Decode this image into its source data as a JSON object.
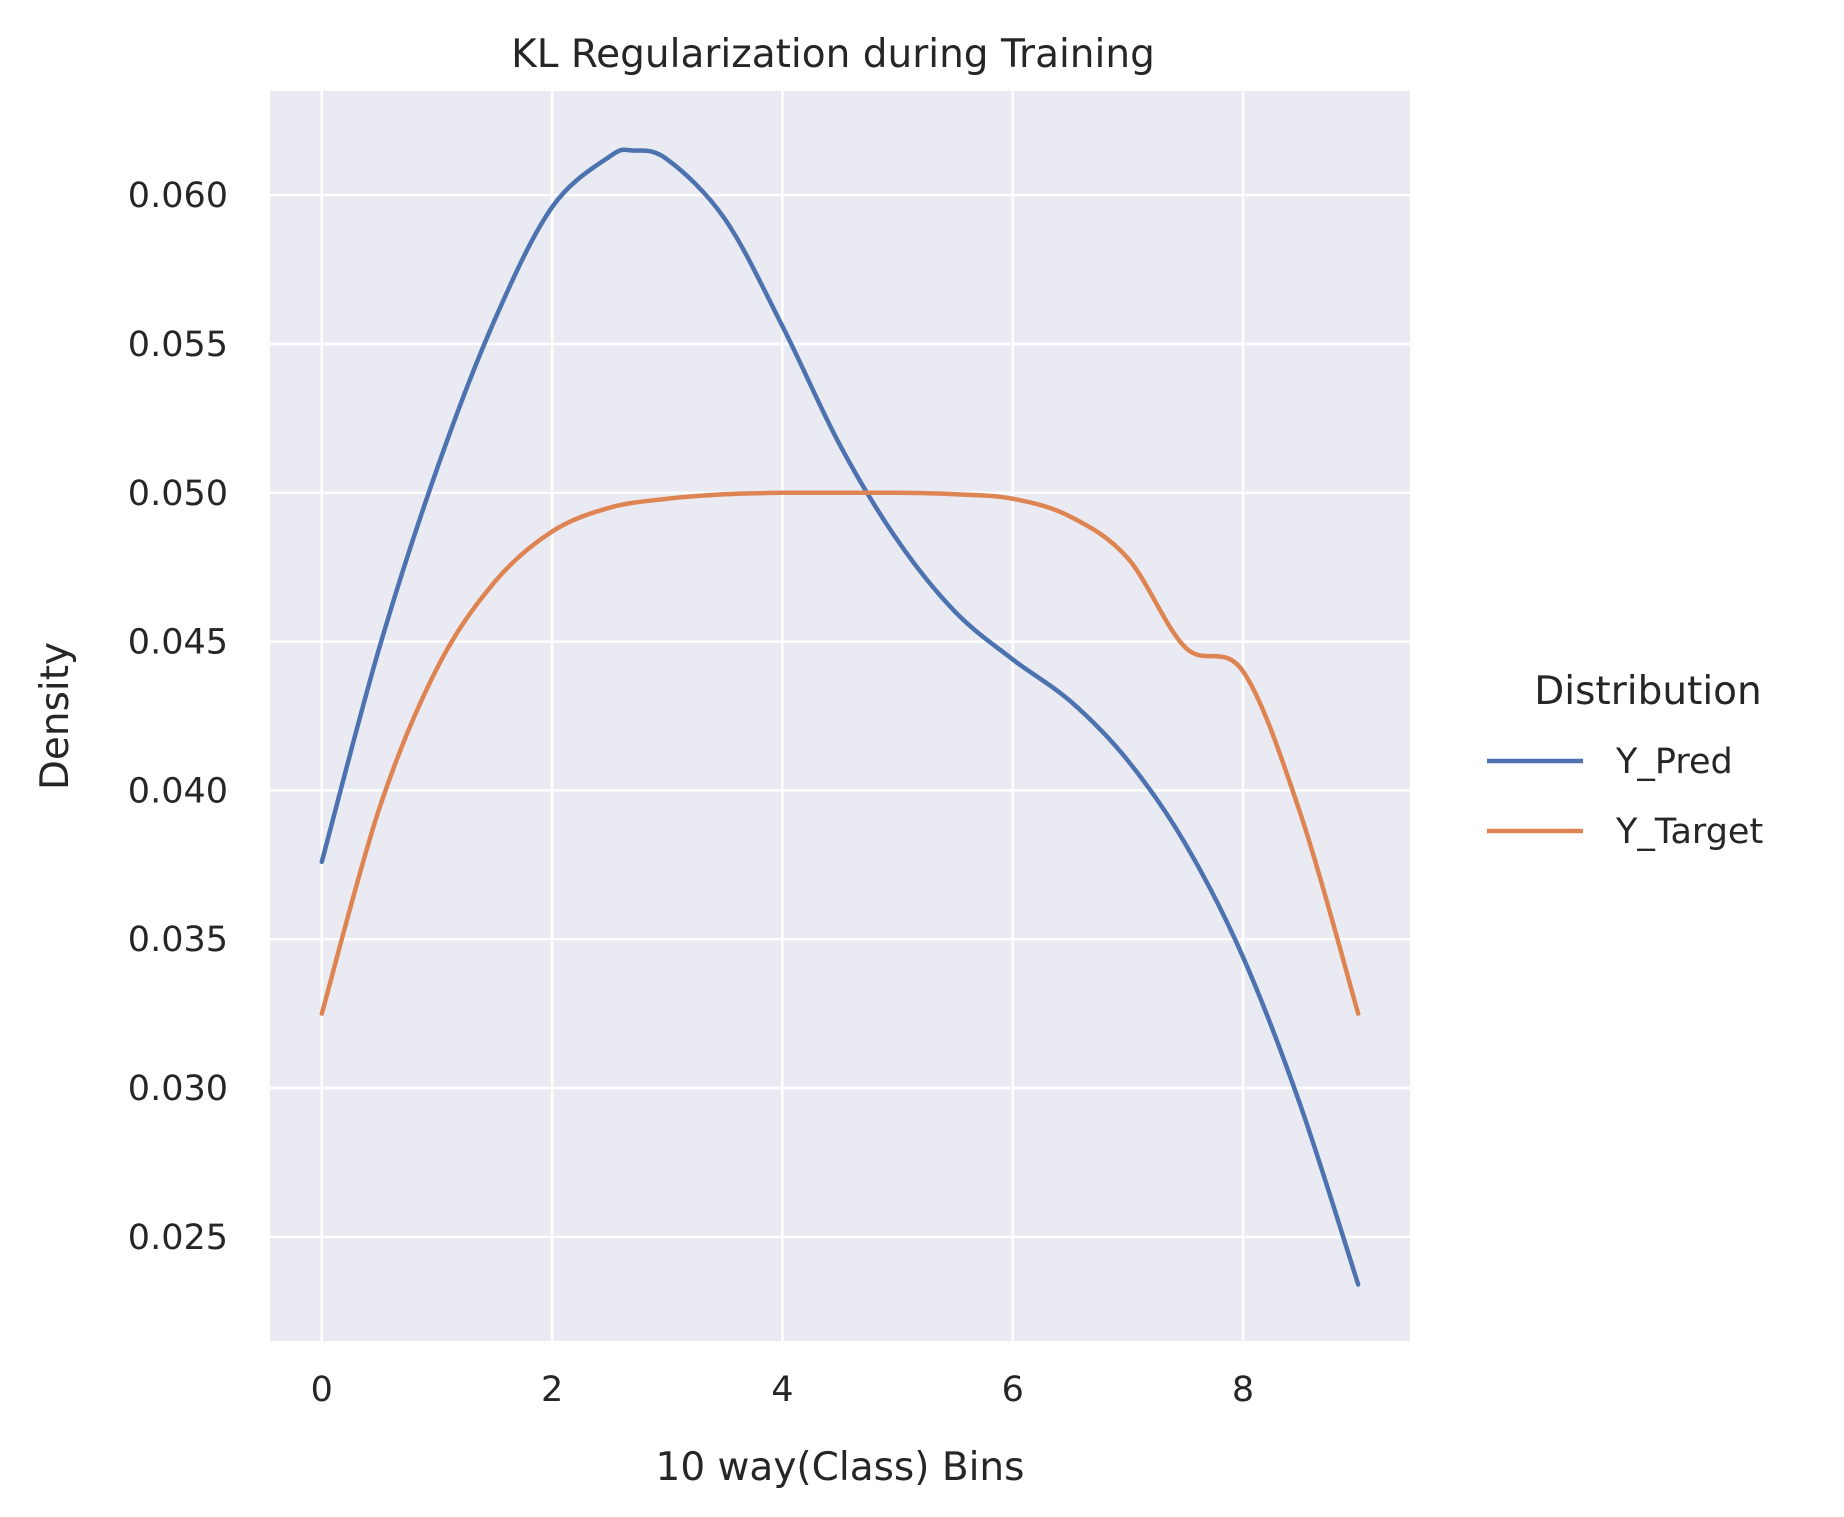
{
  "chart_data": {
    "type": "line",
    "title": "KL Regularization during Training",
    "xlabel": "10 way(Class) Bins",
    "ylabel": "Density",
    "xlim": [
      -0.45,
      9.45
    ],
    "ylim": [
      0.0215,
      0.0635
    ],
    "xticks": [
      0,
      2,
      4,
      6,
      8
    ],
    "yticks": [
      0.025,
      0.03,
      0.035,
      0.04,
      0.045,
      0.05,
      0.055,
      0.06
    ],
    "ytick_labels": [
      "0.025",
      "0.030",
      "0.035",
      "0.040",
      "0.045",
      "0.050",
      "0.055",
      "0.060"
    ],
    "grid": true,
    "legend": {
      "title": "Distribution",
      "placement": "right"
    },
    "background": "#eaeaf2",
    "series": [
      {
        "name": "Y_Pred",
        "color": "#4c72b0",
        "x": [
          0,
          0.5,
          1,
          1.5,
          2,
          2.5,
          2.7,
          3,
          3.5,
          4,
          4.5,
          5,
          5.5,
          6,
          6.5,
          7,
          7.5,
          8,
          8.5,
          9
        ],
        "y": [
          0.0376,
          0.0448,
          0.0508,
          0.0558,
          0.0596,
          0.0613,
          0.0615,
          0.0612,
          0.0592,
          0.0556,
          0.0516,
          0.0484,
          0.046,
          0.0444,
          0.043,
          0.041,
          0.0382,
          0.0344,
          0.0294,
          0.0234
        ]
      },
      {
        "name": "Y_Target",
        "color": "#dd8452",
        "x": [
          0,
          0.5,
          1,
          1.5,
          2,
          2.5,
          3,
          3.5,
          4,
          4.5,
          5,
          5.5,
          6,
          6.5,
          7,
          7.5,
          8,
          8.5,
          9
        ],
        "y": [
          0.0325,
          0.0394,
          0.0441,
          0.047,
          0.0487,
          0.0495,
          0.0498,
          0.04995,
          0.05,
          0.05,
          0.05,
          0.04995,
          0.0498,
          0.0492,
          0.0478,
          0.0448,
          0.044,
          0.0392,
          0.0325
        ]
      }
    ]
  }
}
